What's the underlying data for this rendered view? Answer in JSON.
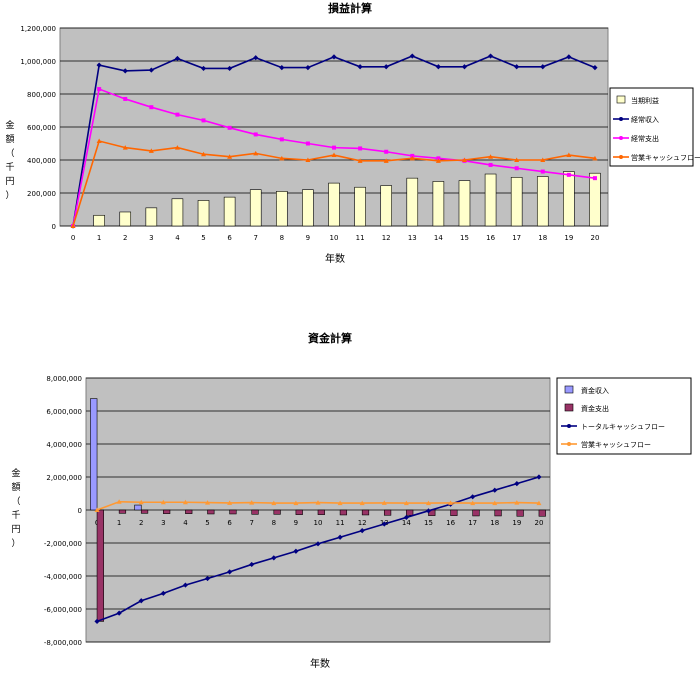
{
  "chart_data": [
    {
      "type": "bar+line",
      "title": "損益計算",
      "xlabel": "年数",
      "ylabel": "金額（千円）",
      "ylim": [
        0,
        1200000
      ],
      "yticks": [
        "0",
        "200,000",
        "400,000",
        "600,000",
        "800,000",
        "1,000,000",
        "1,200,000"
      ],
      "grid": true,
      "legend_position": "right",
      "categories": [
        "0",
        "1",
        "2",
        "3",
        "4",
        "5",
        "6",
        "7",
        "8",
        "9",
        "10",
        "11",
        "12",
        "13",
        "14",
        "15",
        "16",
        "17",
        "18",
        "19",
        "20"
      ],
      "series": [
        {
          "name": "当期利益",
          "kind": "bar",
          "color": "#ffffcc",
          "values": [
            0,
            65000,
            85000,
            110000,
            165000,
            155000,
            175000,
            220000,
            210000,
            220000,
            260000,
            235000,
            245000,
            290000,
            270000,
            275000,
            315000,
            295000,
            300000,
            330000,
            320000
          ]
        },
        {
          "name": "経常収入",
          "kind": "line",
          "color": "#000080",
          "values": [
            0,
            975000,
            940000,
            945000,
            1015000,
            955000,
            955000,
            1020000,
            960000,
            960000,
            1025000,
            965000,
            965000,
            1030000,
            965000,
            965000,
            1030000,
            965000,
            965000,
            1025000,
            960000
          ]
        },
        {
          "name": "経常支出",
          "kind": "line",
          "color": "#ff00ff",
          "values": [
            0,
            830000,
            770000,
            720000,
            675000,
            640000,
            595000,
            555000,
            525000,
            500000,
            475000,
            470000,
            450000,
            425000,
            410000,
            395000,
            370000,
            350000,
            330000,
            310000,
            290000
          ]
        },
        {
          "name": "営業キャッシュフロー",
          "kind": "line",
          "color": "#ff6600",
          "values": [
            0,
            515000,
            475000,
            455000,
            475000,
            435000,
            420000,
            440000,
            410000,
            400000,
            430000,
            395000,
            395000,
            410000,
            395000,
            400000,
            420000,
            400000,
            400000,
            430000,
            410000
          ]
        }
      ]
    },
    {
      "type": "bar+line",
      "title": "資金計算",
      "xlabel": "年数",
      "ylabel": "金額（千円）",
      "ylim": [
        -8000000,
        8000000
      ],
      "yticks": [
        "-8,000,000",
        "-6,000,000",
        "-4,000,000",
        "-2,000,000",
        "0",
        "2,000,000",
        "4,000,000",
        "6,000,000",
        "8,000,000"
      ],
      "grid": true,
      "legend_position": "right",
      "categories": [
        "0",
        "1",
        "2",
        "3",
        "4",
        "5",
        "6",
        "7",
        "8",
        "9",
        "10",
        "11",
        "12",
        "13",
        "14",
        "15",
        "16",
        "17",
        "18",
        "19",
        "20"
      ],
      "series": [
        {
          "name": "資金収入",
          "kind": "bar",
          "color": "#9999ff",
          "values": [
            6750000,
            0,
            300000,
            0,
            0,
            0,
            0,
            0,
            0,
            0,
            0,
            0,
            0,
            0,
            0,
            0,
            0,
            0,
            0,
            0,
            0
          ]
        },
        {
          "name": "資金支出",
          "kind": "bar",
          "color": "#993366",
          "values": [
            -6750000,
            -200000,
            -200000,
            -220000,
            -220000,
            -240000,
            -240000,
            -260000,
            -260000,
            -280000,
            -280000,
            -300000,
            -300000,
            -320000,
            -320000,
            -340000,
            -340000,
            -360000,
            -360000,
            -380000,
            -380000
          ]
        },
        {
          "name": "トータルキャッシュフロー",
          "kind": "line",
          "color": "#000080",
          "values": [
            -6750000,
            -6250000,
            -5500000,
            -5050000,
            -4550000,
            -4150000,
            -3750000,
            -3300000,
            -2900000,
            -2500000,
            -2050000,
            -1650000,
            -1250000,
            -850000,
            -450000,
            -50000,
            350000,
            800000,
            1200000,
            1600000,
            2000000
          ]
        },
        {
          "name": "営業キャッシュフロー",
          "kind": "line",
          "color": "#ff9933",
          "values": [
            0,
            500000,
            470000,
            470000,
            470000,
            450000,
            430000,
            450000,
            420000,
            420000,
            450000,
            420000,
            420000,
            430000,
            420000,
            420000,
            430000,
            420000,
            420000,
            450000,
            420000
          ]
        }
      ]
    }
  ]
}
